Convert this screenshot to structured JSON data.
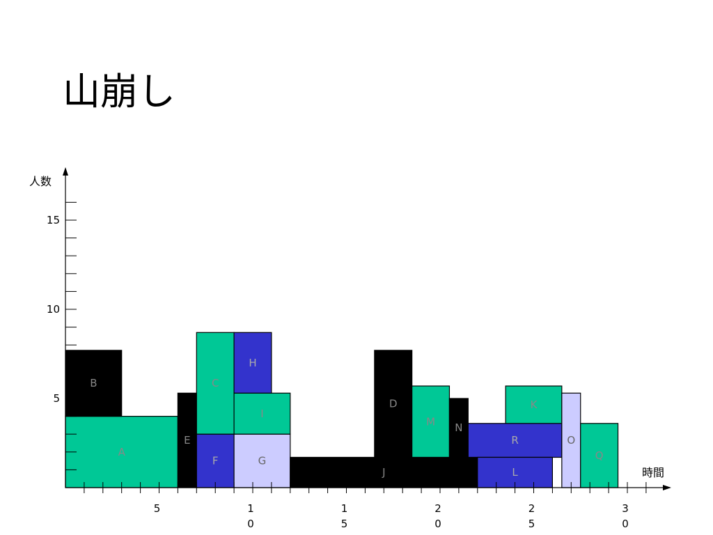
{
  "slide": {
    "title": "山崩し"
  },
  "chart_data": {
    "type": "bar",
    "subtype": "stacked-gantt-resource",
    "title": "",
    "xlabel": "時間",
    "ylabel": "人数",
    "xlim": [
      0,
      32
    ],
    "ylim": [
      0,
      17
    ],
    "y_ticks": [
      {
        "v": 5,
        "label": "5"
      },
      {
        "v": 10,
        "label": "10"
      },
      {
        "v": 15,
        "label": "15"
      }
    ],
    "x_ticks": [
      {
        "v": 5,
        "label": [
          "5"
        ]
      },
      {
        "v": 10,
        "label": [
          "1",
          "0"
        ]
      },
      {
        "v": 15,
        "label": [
          "1",
          "5"
        ]
      },
      {
        "v": 20,
        "label": [
          "2",
          "0"
        ]
      },
      {
        "v": 25,
        "label": [
          "2",
          "5"
        ]
      },
      {
        "v": 30,
        "label": [
          "3",
          "0"
        ]
      }
    ],
    "colors": {
      "green": "#00c896",
      "black": "#000000",
      "blue": "#3333cc",
      "lavender": "#ccccff"
    },
    "tasks": [
      {
        "name": "A",
        "x0": 0,
        "x1": 6,
        "y0": 0,
        "y1": 4,
        "color": "green",
        "label_color": "#888888"
      },
      {
        "name": "B",
        "x0": 0,
        "x1": 3,
        "y0": 4,
        "y1": 7.7,
        "color": "black",
        "label_color": "#888888"
      },
      {
        "name": "E",
        "x0": 6,
        "x1": 7,
        "y0": 0,
        "y1": 5.3,
        "color": "black",
        "label_color": "#888888"
      },
      {
        "name": "F",
        "x0": 7,
        "x1": 9,
        "y0": 0,
        "y1": 3,
        "color": "blue",
        "label_color": "#aaaaaa"
      },
      {
        "name": "C",
        "x0": 7,
        "x1": 9,
        "y0": 3,
        "y1": 8.7,
        "color": "green",
        "label_color": "#888888"
      },
      {
        "name": "G",
        "x0": 9,
        "x1": 12,
        "y0": 0,
        "y1": 3,
        "color": "lavender",
        "label_color": "#666666"
      },
      {
        "name": "I",
        "x0": 9,
        "x1": 12,
        "y0": 3,
        "y1": 5.3,
        "color": "green",
        "label_color": "#888888"
      },
      {
        "name": "H",
        "x0": 9,
        "x1": 11,
        "y0": 5.3,
        "y1": 8.7,
        "color": "blue",
        "label_color": "#aaaaaa"
      },
      {
        "name": "J",
        "x0": 12,
        "x1": 22,
        "y0": 0,
        "y1": 1.7,
        "color": "black",
        "label_color": "#888888"
      },
      {
        "name": "D",
        "x0": 16.5,
        "x1": 18.5,
        "y0": 1.7,
        "y1": 7.7,
        "color": "black",
        "label_color": "#888888"
      },
      {
        "name": "M",
        "x0": 18.5,
        "x1": 20.5,
        "y0": 1.7,
        "y1": 5.7,
        "color": "green",
        "label_color": "#888888"
      },
      {
        "name": "N",
        "x0": 20.5,
        "x1": 21.5,
        "y0": 1.7,
        "y1": 5,
        "color": "black",
        "label_color": "#888888"
      },
      {
        "name": "R",
        "x0": 21.5,
        "x1": 26.5,
        "y0": 1.7,
        "y1": 3.6,
        "color": "blue",
        "label_color": "#aaaaaa"
      },
      {
        "name": "L",
        "x0": 22,
        "x1": 26,
        "y0": 0,
        "y1": 1.7,
        "color": "blue",
        "label_color": "#aaaaaa"
      },
      {
        "name": "K",
        "x0": 23.5,
        "x1": 26.5,
        "y0": 3.6,
        "y1": 5.7,
        "color": "green",
        "label_color": "#888888"
      },
      {
        "name": "O",
        "x0": 26.5,
        "x1": 27.5,
        "y0": 0,
        "y1": 5.3,
        "color": "lavender",
        "label_color": "#666666"
      },
      {
        "name": "Q",
        "x0": 27.5,
        "x1": 29.5,
        "y0": 0,
        "y1": 3.6,
        "color": "green",
        "label_color": "#888888"
      }
    ]
  }
}
